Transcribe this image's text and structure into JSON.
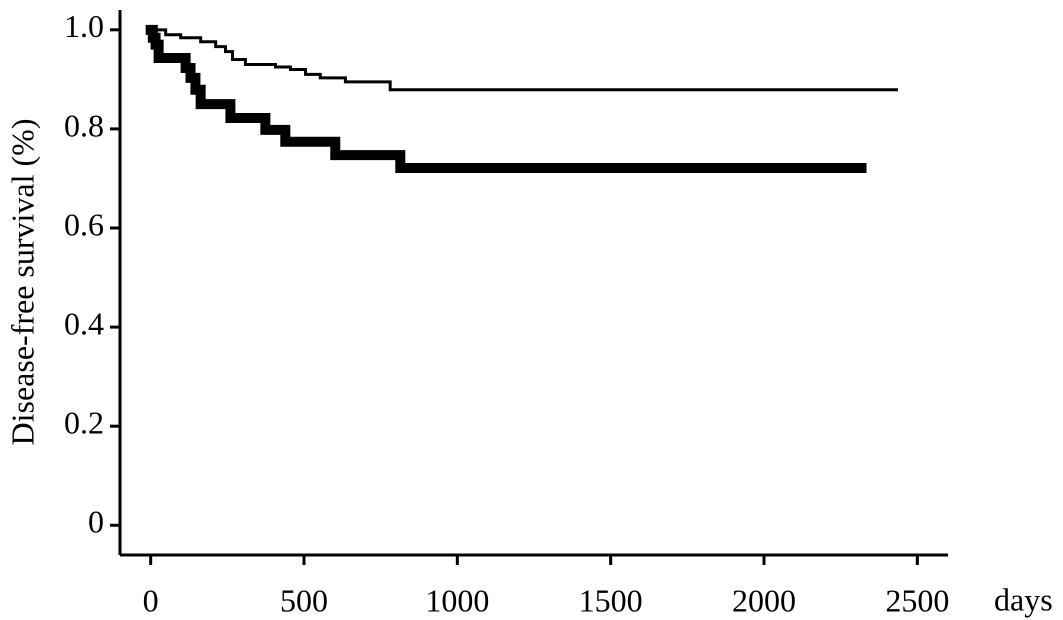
{
  "chart_data": {
    "type": "step",
    "y_label": "Disease-free survival (%)",
    "x_label": "days",
    "xlim": [
      -100,
      2600
    ],
    "xticks": [
      0,
      500,
      1000,
      1500,
      2000,
      2500
    ],
    "ylim": [
      -0.06,
      1.04
    ],
    "yticks": [
      0,
      {
        "value": 0.2,
        "label": "0.2"
      },
      {
        "value": 0.4,
        "label": "0.4"
      },
      {
        "value": 0.6,
        "label": "0.6"
      },
      {
        "value": 0.8,
        "label": "0.8"
      },
      {
        "value": 1,
        "label": "1.0"
      }
    ],
    "series": [
      {
        "color": "#000000",
        "width": 3,
        "x": [
          0,
          49,
          98,
          163,
          212,
          244,
          267,
          309,
          407,
          456,
          505,
          553,
          635,
          781,
          2432
        ],
        "values": [
          1.0,
          0.99,
          0.984,
          0.976,
          0.966,
          0.956,
          0.94,
          0.93,
          0.925,
          0.92,
          0.91,
          0.903,
          0.895,
          0.879,
          0.879
        ]
      },
      {
        "color": "#000000",
        "width": 10,
        "x": [
          0,
          7,
          16,
          26,
          114,
          130,
          146,
          163,
          260,
          374,
          439,
          602,
          814,
          2318
        ],
        "values": [
          1.0,
          0.984,
          0.97,
          0.943,
          0.923,
          0.903,
          0.879,
          0.85,
          0.822,
          0.798,
          0.774,
          0.747,
          0.721,
          0.721
        ]
      }
    ]
  }
}
